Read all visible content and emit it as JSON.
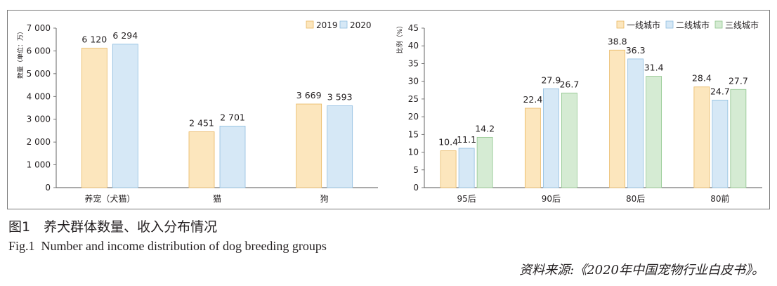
{
  "figure": {
    "caption_cn": "图1　养犬群体数量、收入分布情况",
    "caption_en": "Fig.1  Number and income distribution of dog breeding groups",
    "source": "资料来源:《2020年中国宠物行业白皮书》。"
  },
  "chart_data": [
    {
      "type": "bar",
      "ylabel": "数量（单位：万）",
      "ylim": [
        0,
        7000
      ],
      "yticks": [
        0,
        1000,
        2000,
        3000,
        4000,
        5000,
        6000,
        7000
      ],
      "ytick_labels": [
        "0",
        "1 000",
        "2 000",
        "3 000",
        "4 000",
        "5 000",
        "6 000",
        "7 000"
      ],
      "categories": [
        "养宠（犬猫）",
        "猫",
        "狗"
      ],
      "series": [
        {
          "name": "2019",
          "values": [
            6120,
            2451,
            3669
          ],
          "labels": [
            "6 120",
            "2 451",
            "3 669"
          ],
          "color": "#fce6bd",
          "stroke": "#e9b760"
        },
        {
          "name": "2020",
          "values": [
            6294,
            2701,
            3593
          ],
          "labels": [
            "6 294",
            "2 701",
            "3 593"
          ],
          "color": "#d6e8f6",
          "stroke": "#8ebde0"
        }
      ],
      "legend_position": "top-right",
      "grid": false
    },
    {
      "type": "bar",
      "ylabel": "比例（%）",
      "ylim": [
        0,
        45
      ],
      "yticks": [
        0,
        5,
        10,
        15,
        20,
        25,
        30,
        35,
        40,
        45
      ],
      "ytick_labels": [
        "0",
        "5",
        "10",
        "15",
        "20",
        "25",
        "30",
        "35",
        "40",
        "45"
      ],
      "categories": [
        "95后",
        "90后",
        "80后",
        "80前"
      ],
      "series": [
        {
          "name": "一线城市",
          "values": [
            10.4,
            22.4,
            38.8,
            28.4
          ],
          "labels": [
            "10.4",
            "22.4",
            "38.8",
            "28.4"
          ],
          "color": "#fce6bd",
          "stroke": "#e9b760"
        },
        {
          "name": "二线城市",
          "values": [
            11.1,
            27.9,
            36.3,
            24.7
          ],
          "labels": [
            "11.1",
            "27.9",
            "36.3",
            "24.7"
          ],
          "color": "#d6e8f6",
          "stroke": "#8ebde0"
        },
        {
          "name": "三线城市",
          "values": [
            14.2,
            26.7,
            31.4,
            27.7
          ],
          "labels": [
            "14.2",
            "26.7",
            "31.4",
            "27.7"
          ],
          "color": "#d5ebd3",
          "stroke": "#8fc58c"
        }
      ],
      "legend_position": "top-right",
      "grid": false
    }
  ]
}
